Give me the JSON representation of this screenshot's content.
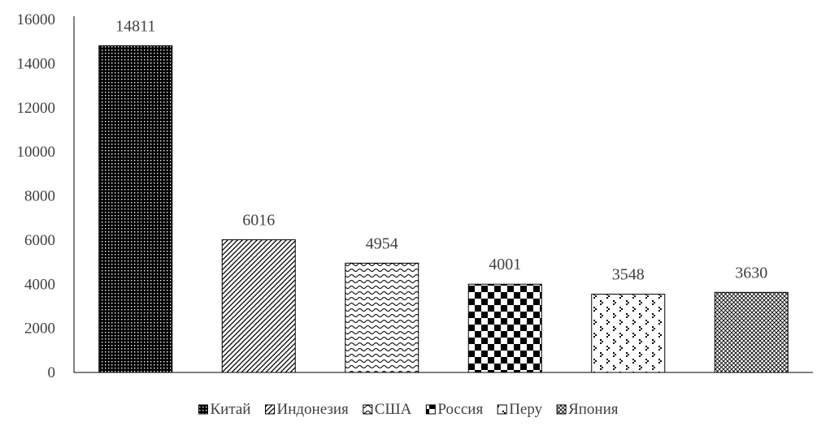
{
  "chart_data": {
    "type": "bar",
    "categories": [
      "Китай",
      "Индонезия",
      "США",
      "Россия",
      "Перу",
      "Япония"
    ],
    "values": [
      14811,
      6016,
      4954,
      4001,
      3548,
      3630
    ],
    "data_labels": [
      "14811",
      "6016",
      "4954",
      "4001",
      "3548",
      "3630"
    ],
    "ylim": [
      0,
      16000
    ],
    "y_ticks": [
      "0",
      "2000",
      "4000",
      "6000",
      "8000",
      "10000",
      "12000",
      "14000",
      "16000"
    ],
    "y_tick_values": [
      0,
      2000,
      4000,
      6000,
      8000,
      10000,
      12000,
      14000,
      16000
    ],
    "title": "",
    "xlabel": "",
    "ylabel": "",
    "grid": false,
    "legend_position": "bottom",
    "bar_patterns": [
      "dots",
      "diagonal",
      "waves",
      "checker",
      "confetti",
      "crosshatch"
    ],
    "colors": {
      "bar_ink": "#000000",
      "bar_paper": "#ffffff",
      "axis": "#000000",
      "text": "#404040"
    }
  }
}
